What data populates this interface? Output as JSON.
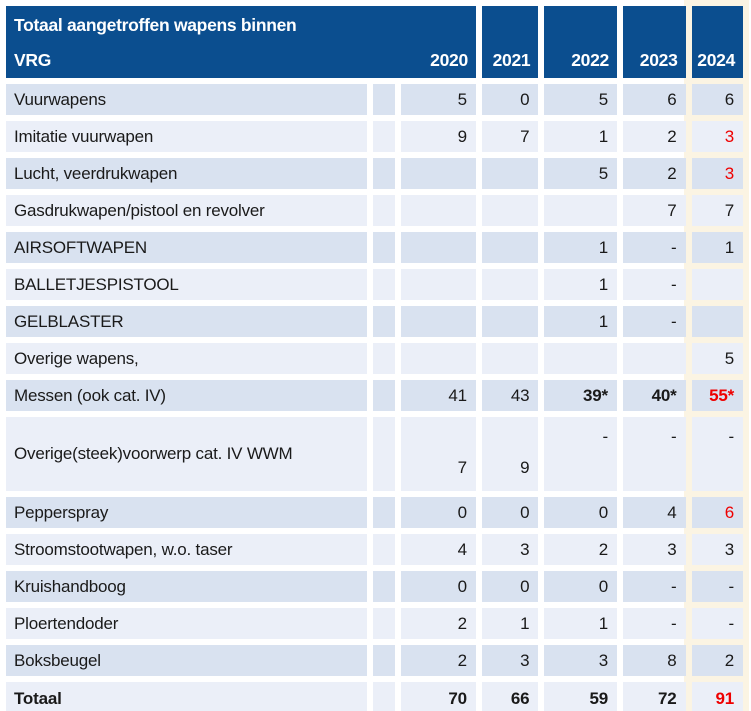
{
  "colors": {
    "header_bg": "#0b4e8f",
    "header_text": "#ffffff",
    "row_band_dark": "#d9e2f0",
    "row_band_light": "#ebeff8",
    "highlight_2024_band": "#fbf4e3",
    "value_text": "#1a1a1a",
    "alert_red": "#ee0000"
  },
  "chart_data": {
    "type": "table",
    "title": "Totaal aangetroffen wapens binnen VRG",
    "title_lines": [
      "Totaal aangetroffen wapens binnen",
      "VRG"
    ],
    "columns": [
      "2020",
      "2021",
      "2022",
      "2023",
      "2024"
    ],
    "rows": [
      {
        "label": "Vuurwapens",
        "shade": "dark",
        "cells": [
          "5",
          "0",
          "5",
          "6",
          "6"
        ]
      },
      {
        "label": "Imitatie vuurwapen",
        "shade": "light",
        "cells": [
          "9",
          "7",
          "1",
          "2",
          {
            "text": "3",
            "red": true
          }
        ]
      },
      {
        "label": "Lucht, veerdrukwapen",
        "shade": "dark",
        "cells": [
          "",
          "",
          "5",
          "2",
          {
            "text": "3",
            "red": true
          }
        ]
      },
      {
        "label": "Gasdrukwapen/pistool en revolver",
        "shade": "light",
        "cells": [
          "",
          "",
          "",
          "7",
          "7"
        ]
      },
      {
        "label": "AIRSOFTWAPEN",
        "shade": "dark",
        "cells": [
          "",
          "",
          "1",
          "-",
          "1"
        ]
      },
      {
        "label": "BALLETJESPISTOOL",
        "shade": "light",
        "cells": [
          "",
          "",
          "1",
          "-",
          ""
        ]
      },
      {
        "label": "GELBLASTER",
        "shade": "dark",
        "cells": [
          "",
          "",
          "1",
          "-",
          ""
        ]
      },
      {
        "label": "Overige wapens,",
        "shade": "light",
        "cells": [
          "",
          "",
          "",
          "",
          "5"
        ]
      },
      {
        "label": "Messen (ook cat. IV)",
        "shade": "dark",
        "cells": [
          "41",
          "43",
          {
            "text": "39*",
            "bold": true
          },
          {
            "text": "40*",
            "bold": true
          },
          {
            "text": "55*",
            "bold": true,
            "red": true
          }
        ]
      },
      {
        "label": "Overige(steek)voorwerp cat. IV WWM",
        "shade": "light",
        "tall": true,
        "cells": [
          {
            "text": "7",
            "valign": "bottom"
          },
          {
            "text": "9",
            "valign": "bottom"
          },
          {
            "text": "-",
            "valign": "top"
          },
          {
            "text": "-",
            "valign": "top"
          },
          {
            "text": "-",
            "valign": "top"
          }
        ]
      },
      {
        "label": "Pepperspray",
        "shade": "dark",
        "cells": [
          "0",
          "0",
          "0",
          "4",
          {
            "text": "6",
            "red": true
          }
        ]
      },
      {
        "label": "Stroomstootwapen, w.o. taser",
        "shade": "light",
        "cells": [
          "4",
          "3",
          "2",
          "3",
          "3"
        ]
      },
      {
        "label": "Kruishandboog",
        "shade": "dark",
        "cells": [
          "0",
          "0",
          "0",
          "-",
          "-"
        ]
      },
      {
        "label": "Ploertendoder",
        "shade": "light",
        "cells": [
          "2",
          "1",
          "1",
          "-",
          "-"
        ]
      },
      {
        "label": "Boksbeugel",
        "shade": "dark",
        "cells": [
          "2",
          "3",
          "3",
          "8",
          "2"
        ]
      },
      {
        "label": "Totaal",
        "shade": "light",
        "total": true,
        "cells": [
          {
            "text": "70",
            "bold": true
          },
          {
            "text": "66",
            "bold": true
          },
          {
            "text": "59",
            "bold": true
          },
          {
            "text": "72",
            "bold": true
          },
          {
            "text": "91",
            "bold": true,
            "red": true
          }
        ]
      }
    ]
  }
}
